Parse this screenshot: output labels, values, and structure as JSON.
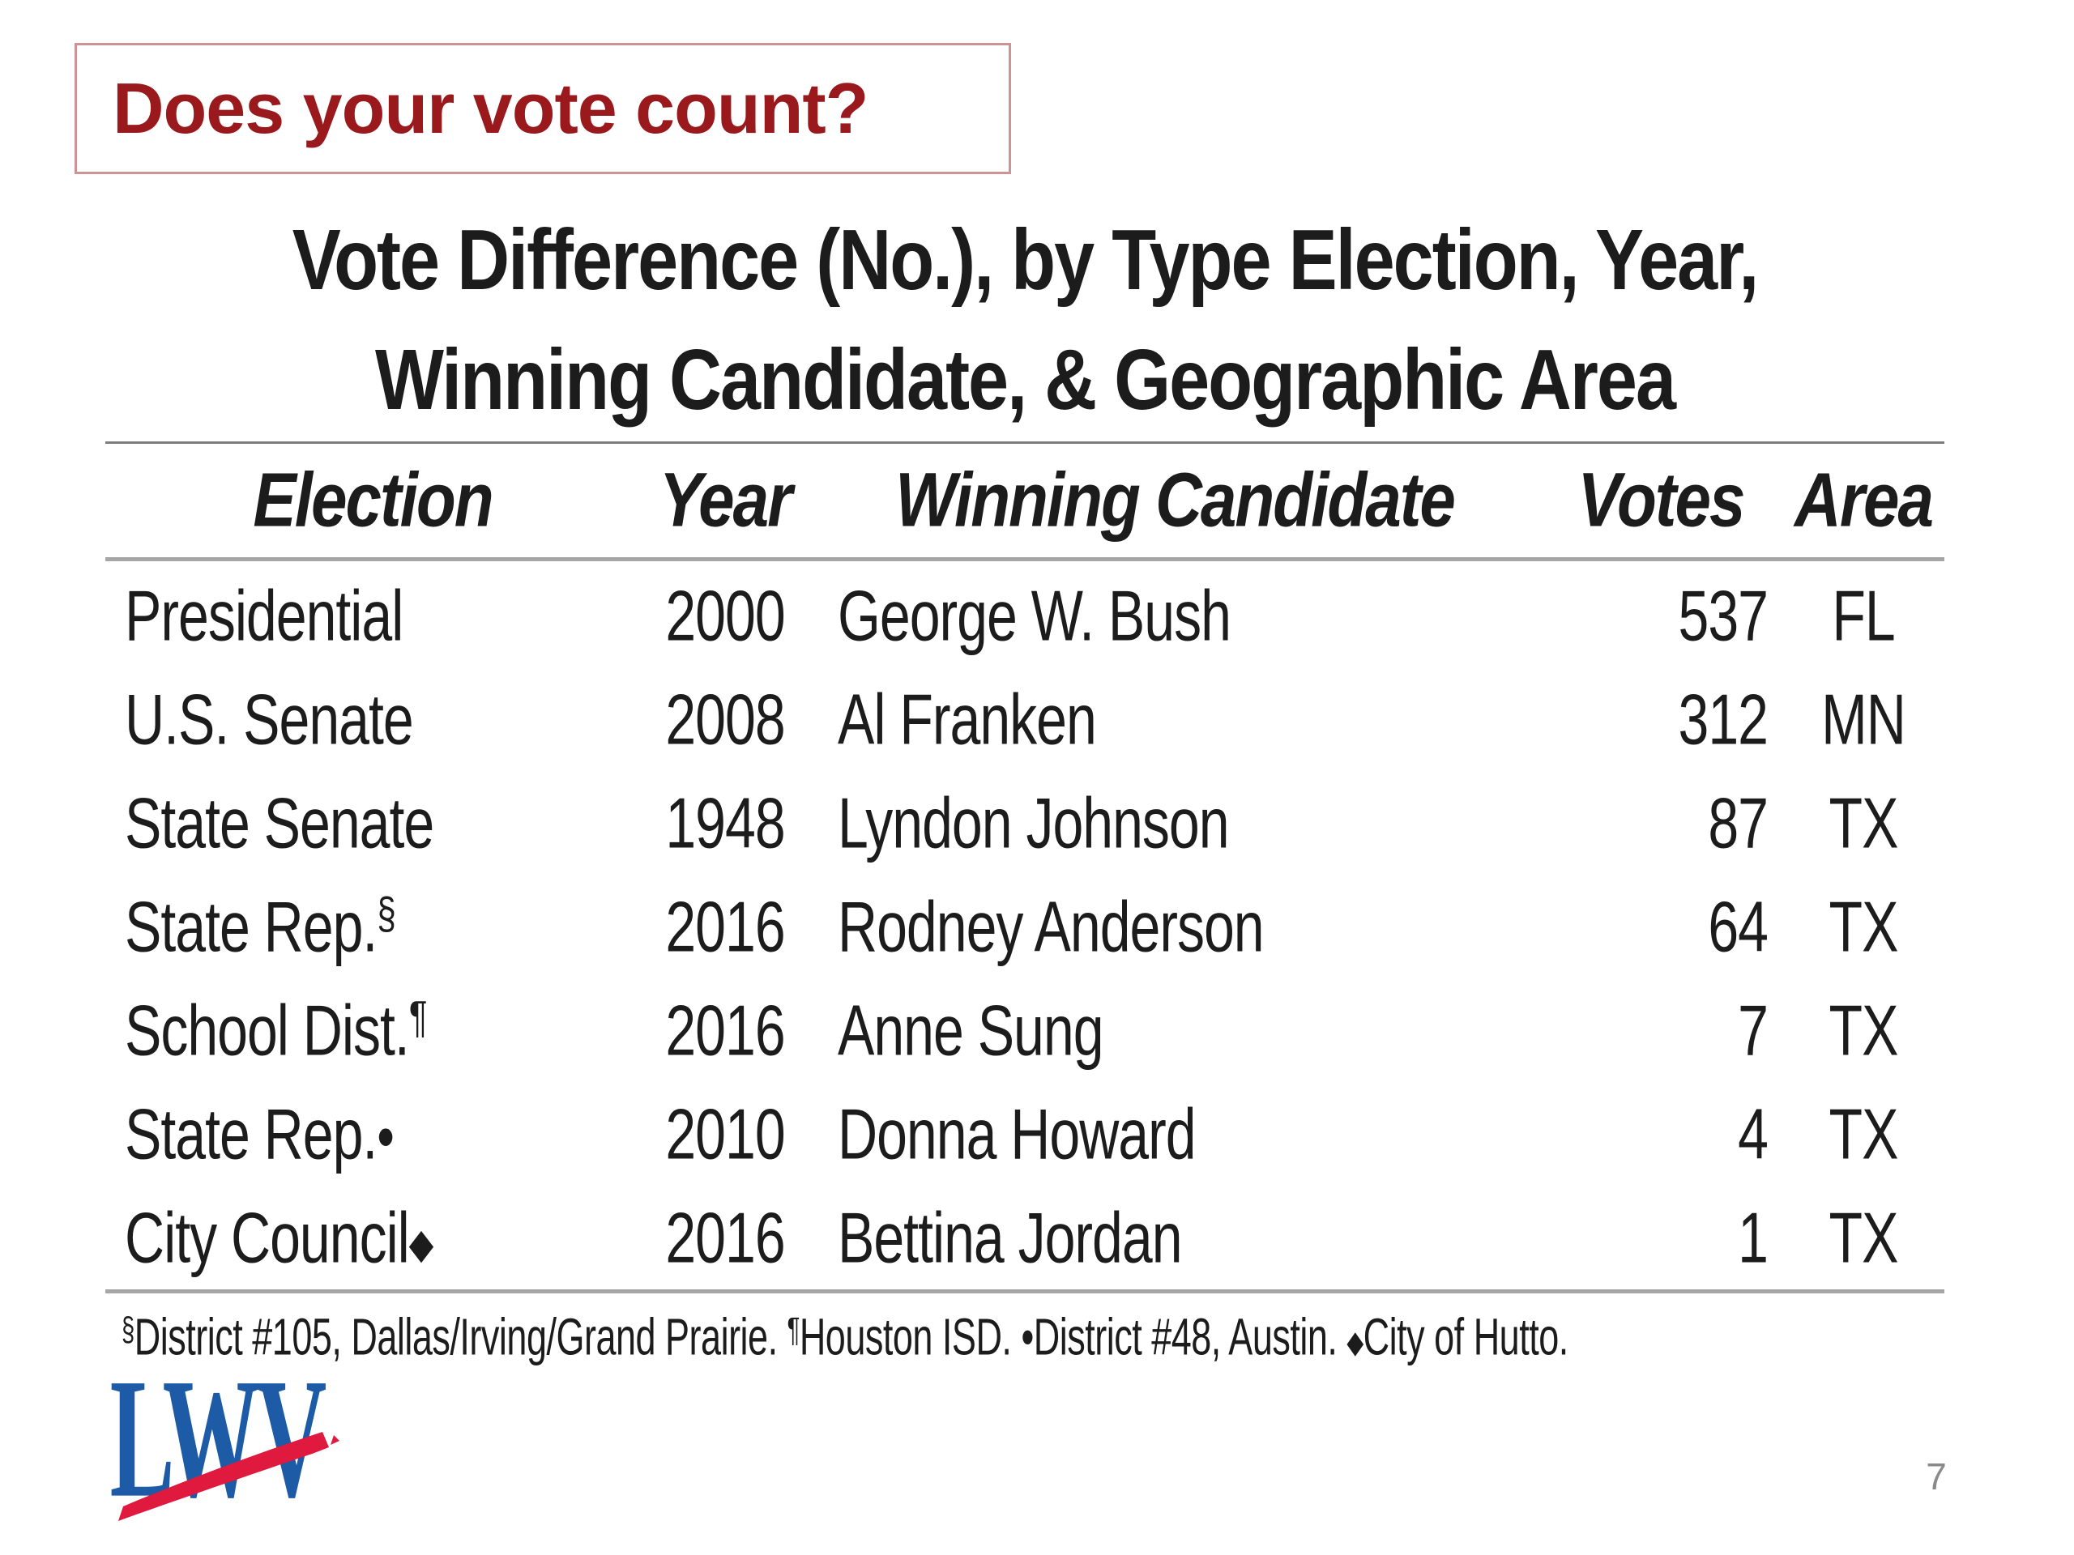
{
  "slide": {
    "question": "Does your vote count?",
    "title_line1": "Vote Difference (No.), by Type Election, Year,",
    "title_line2": "Winning Candidate, & Geographic Area",
    "page_number": "7"
  },
  "table": {
    "headers": [
      "Election",
      "Year",
      "Winning Candidate",
      "Votes",
      "Area"
    ],
    "rows": [
      {
        "election": "Presidential",
        "marker": "",
        "marker_style": "",
        "year": "2000",
        "candidate": "George W. Bush",
        "votes": "537",
        "area": "FL"
      },
      {
        "election": "U.S. Senate",
        "marker": "",
        "marker_style": "",
        "year": "2008",
        "candidate": "Al Franken",
        "votes": "312",
        "area": "MN"
      },
      {
        "election": "State Senate",
        "marker": "",
        "marker_style": "",
        "year": "1948",
        "candidate": "Lyndon Johnson",
        "votes": "87",
        "area": "TX"
      },
      {
        "election": "State Rep.",
        "marker": "§",
        "marker_style": "sup",
        "year": "2016",
        "candidate": "Rodney Anderson",
        "votes": "64",
        "area": "TX"
      },
      {
        "election": "School Dist.",
        "marker": "¶",
        "marker_style": "sup",
        "year": "2016",
        "candidate": "Anne Sung",
        "votes": "7",
        "area": "TX"
      },
      {
        "election": "State Rep.",
        "marker": "•",
        "marker_style": "bullet",
        "year": "2010",
        "candidate": "Donna Howard",
        "votes": "4",
        "area": "TX"
      },
      {
        "election": "City Council",
        "marker": "◆",
        "marker_style": "diamond",
        "year": "2016",
        "candidate": "Bettina Jordan",
        "votes": "1",
        "area": "TX"
      }
    ]
  },
  "footnote": {
    "segments": [
      {
        "symbol": "§",
        "style": "sup",
        "text": "District #105, Dallas/Irving/Grand Prairie. "
      },
      {
        "symbol": "¶",
        "style": "sup",
        "text": "Houston ISD. "
      },
      {
        "symbol": "•",
        "style": "bullet",
        "text": "District #48, Austin. "
      },
      {
        "symbol": "◆",
        "style": "diamond",
        "text": "City of Hutto."
      }
    ]
  },
  "logo": {
    "text": "LWV"
  },
  "colors": {
    "heading_red": "#9a191d",
    "question_box_border": "#cf9295",
    "body_text": "#1c1c1c",
    "rule_dark_gray": "#7d7d7d",
    "rule_gray": "#a6a6a6",
    "logo_blue": "#1d5ba6",
    "logo_red": "#e0193e",
    "page_number_gray": "#8a8a8a"
  }
}
